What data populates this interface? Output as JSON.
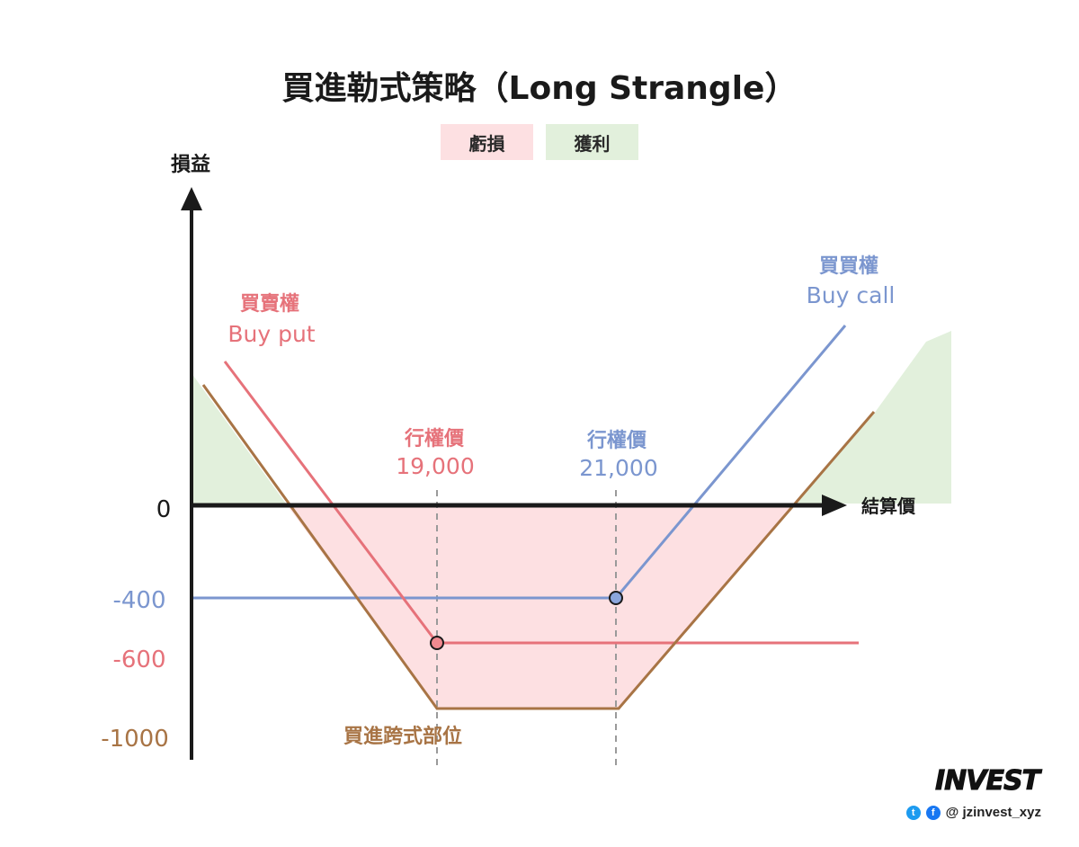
{
  "title": "買進勒式策略（Long Strangle）",
  "legend": {
    "loss": "虧損",
    "profit": "獲利"
  },
  "axis": {
    "y_label": "損益",
    "x_label": "結算價",
    "zero_label": "0"
  },
  "y_ticks": [
    {
      "value": -400,
      "label": "-400",
      "color": "#7b96cf"
    },
    {
      "value": -600,
      "label": "-600",
      "color": "#e6727a"
    },
    {
      "value": -1000,
      "label": "-1000",
      "color": "#a87445"
    }
  ],
  "strikes": [
    {
      "label": "行權價",
      "value_label": "19,000",
      "color": "#e6727a"
    },
    {
      "label": "行權價",
      "value_label": "21,000",
      "color": "#7b96cf"
    }
  ],
  "put": {
    "name_zh": "買賣權",
    "name_en": "Buy put",
    "color": "#e6727a"
  },
  "call": {
    "name_zh": "買買權",
    "name_en": "Buy call",
    "color": "#7b96cf"
  },
  "combined": {
    "name": "買進跨式部位",
    "color": "#a87445"
  },
  "colors": {
    "loss_fill": "#fde0e2",
    "profit_fill": "#e2f0dc",
    "axis": "#1a1a1a"
  },
  "brand": {
    "logo": "INVEST",
    "handle": "@ jzinvest_xyz"
  }
}
